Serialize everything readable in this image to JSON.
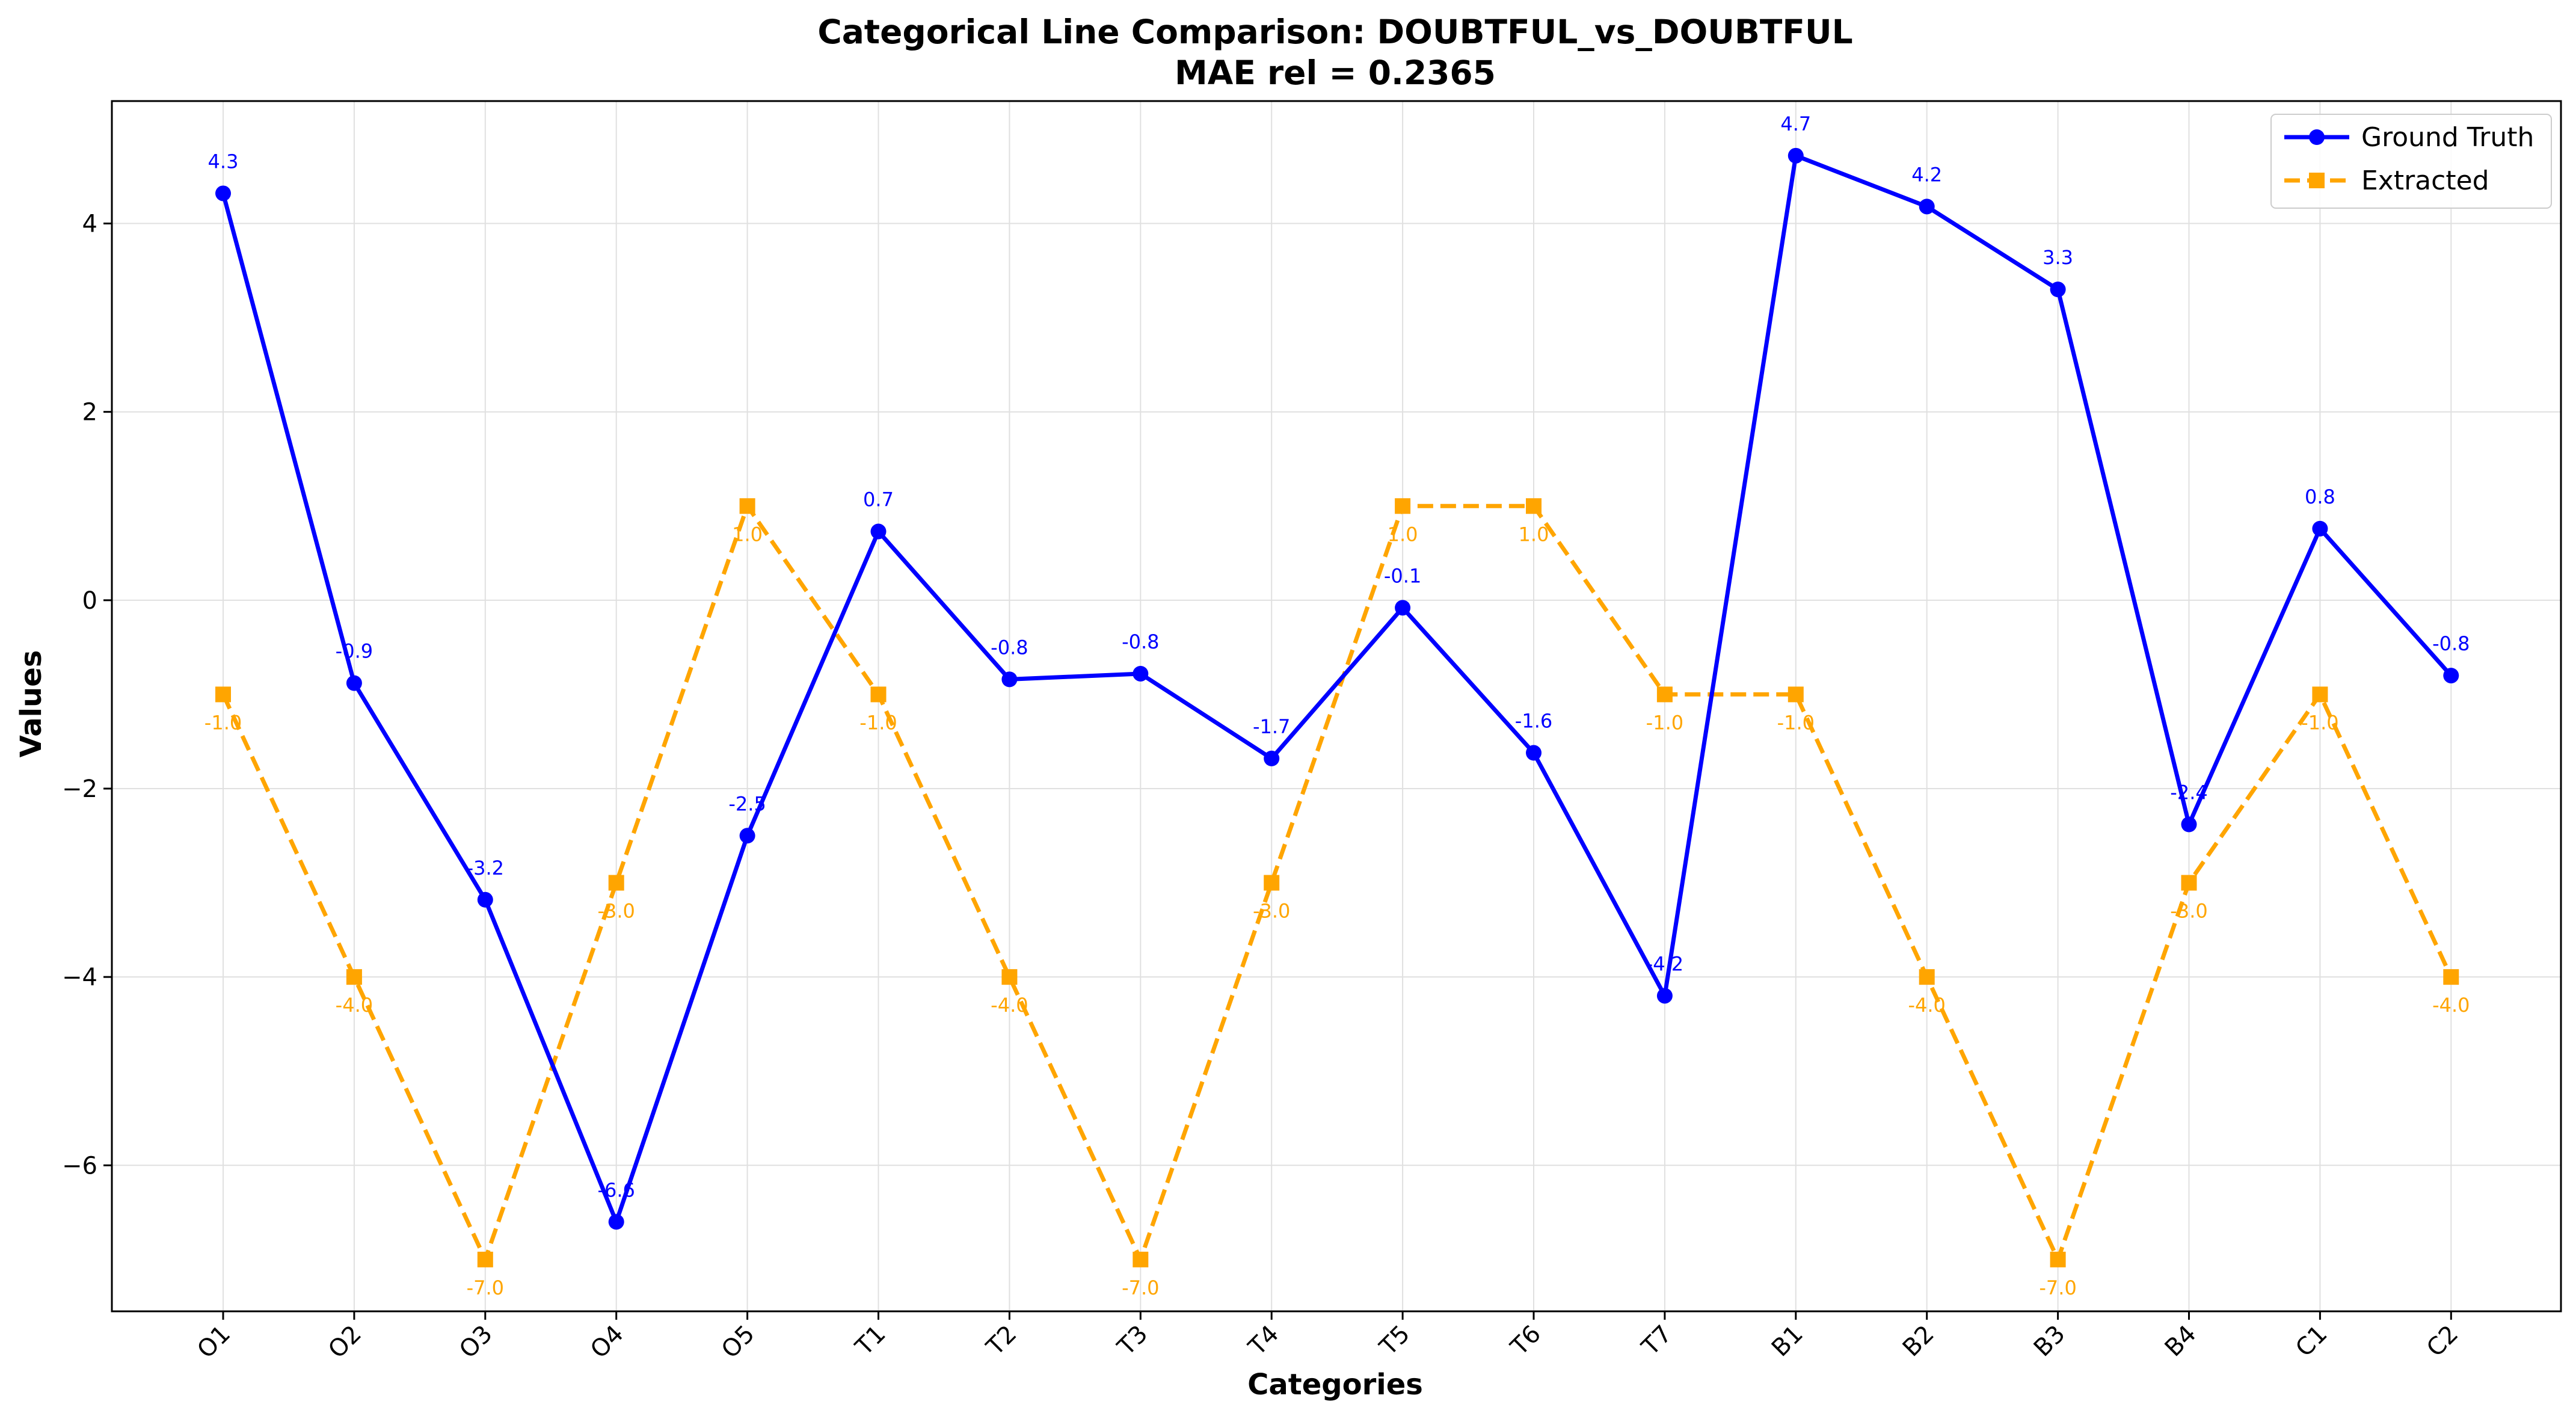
{
  "chart_data": {
    "type": "line",
    "title_line1": "Categorical Line Comparison: DOUBTFUL_vs_DOUBTFUL",
    "title_line2": "MAE rel = 0.2365",
    "xlabel": "Categories",
    "ylabel": "Values",
    "categories": [
      "O1",
      "O2",
      "O3",
      "O4",
      "O5",
      "T1",
      "T2",
      "T3",
      "T4",
      "T5",
      "T6",
      "T7",
      "B1",
      "B2",
      "B3",
      "B4",
      "C1",
      "C2"
    ],
    "ylim": [
      -7.55,
      5.3
    ],
    "yticks": [
      -6,
      -4,
      -2,
      0,
      2,
      4
    ],
    "ytick_labels": [
      "−6",
      "−4",
      "−2",
      "0",
      "2",
      "4"
    ],
    "grid": true,
    "legend_position": "top-right",
    "series": [
      {
        "name": "Ground Truth",
        "color": "#0000ff",
        "line_style": "solid",
        "marker": "circle",
        "values": [
          4.32,
          -0.88,
          -3.18,
          -6.6,
          -2.5,
          0.73,
          -0.84,
          -0.78,
          -1.68,
          -0.08,
          -1.62,
          -4.2,
          4.72,
          4.18,
          3.3,
          -2.38,
          0.76,
          -0.8
        ],
        "labels": [
          "4.3",
          "-0.9",
          "-3.2",
          "-6.6",
          "-2.5",
          "0.7",
          "-0.8",
          "-0.8",
          "-1.7",
          "-0.1",
          "-1.6",
          "-4.2",
          "4.7",
          "4.2",
          "3.3",
          "-2.4",
          "0.8",
          "-0.8"
        ]
      },
      {
        "name": "Extracted",
        "color": "#ffa500",
        "line_style": "dashed",
        "marker": "square",
        "values": [
          -1.0,
          -4.0,
          -7.0,
          -3.0,
          1.0,
          -1.0,
          -4.0,
          -7.0,
          -3.0,
          1.0,
          1.0,
          -1.0,
          -1.0,
          -4.0,
          -7.0,
          -3.0,
          -1.0,
          -4.0
        ],
        "labels": [
          "-1.0",
          "-4.0",
          "-7.0",
          "-3.0",
          "1.0",
          "-1.0",
          "-4.0",
          "-7.0",
          "-3.0",
          "1.0",
          "1.0",
          "-1.0",
          "-1.0",
          "-4.0",
          "-7.0",
          "-3.0",
          "-1.0",
          "-4.0"
        ]
      }
    ]
  }
}
